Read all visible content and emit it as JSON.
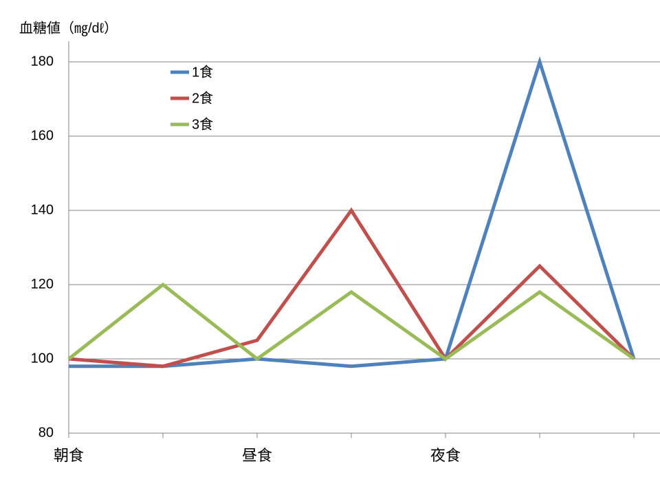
{
  "chart_data": {
    "type": "line",
    "y_label": "血糖値（㎎/dℓ）",
    "categories": [
      "朝食",
      null,
      "昼食",
      null,
      "夜食",
      null,
      null
    ],
    "series": [
      {
        "name": "1食",
        "color": "#4f81bd",
        "values": [
          98,
          98,
          100,
          98,
          100,
          180,
          100
        ]
      },
      {
        "name": "2食",
        "color": "#c0504d",
        "values": [
          100,
          98,
          105,
          140,
          100,
          125,
          100
        ]
      },
      {
        "name": "3食",
        "color": "#9bbb59",
        "values": [
          100,
          120,
          100,
          118,
          100,
          118,
          100
        ]
      }
    ],
    "ylim": [
      80,
      180
    ],
    "yticks": [
      80,
      100,
      120,
      140,
      160,
      180
    ],
    "grid": true,
    "legend": "upper-left"
  }
}
